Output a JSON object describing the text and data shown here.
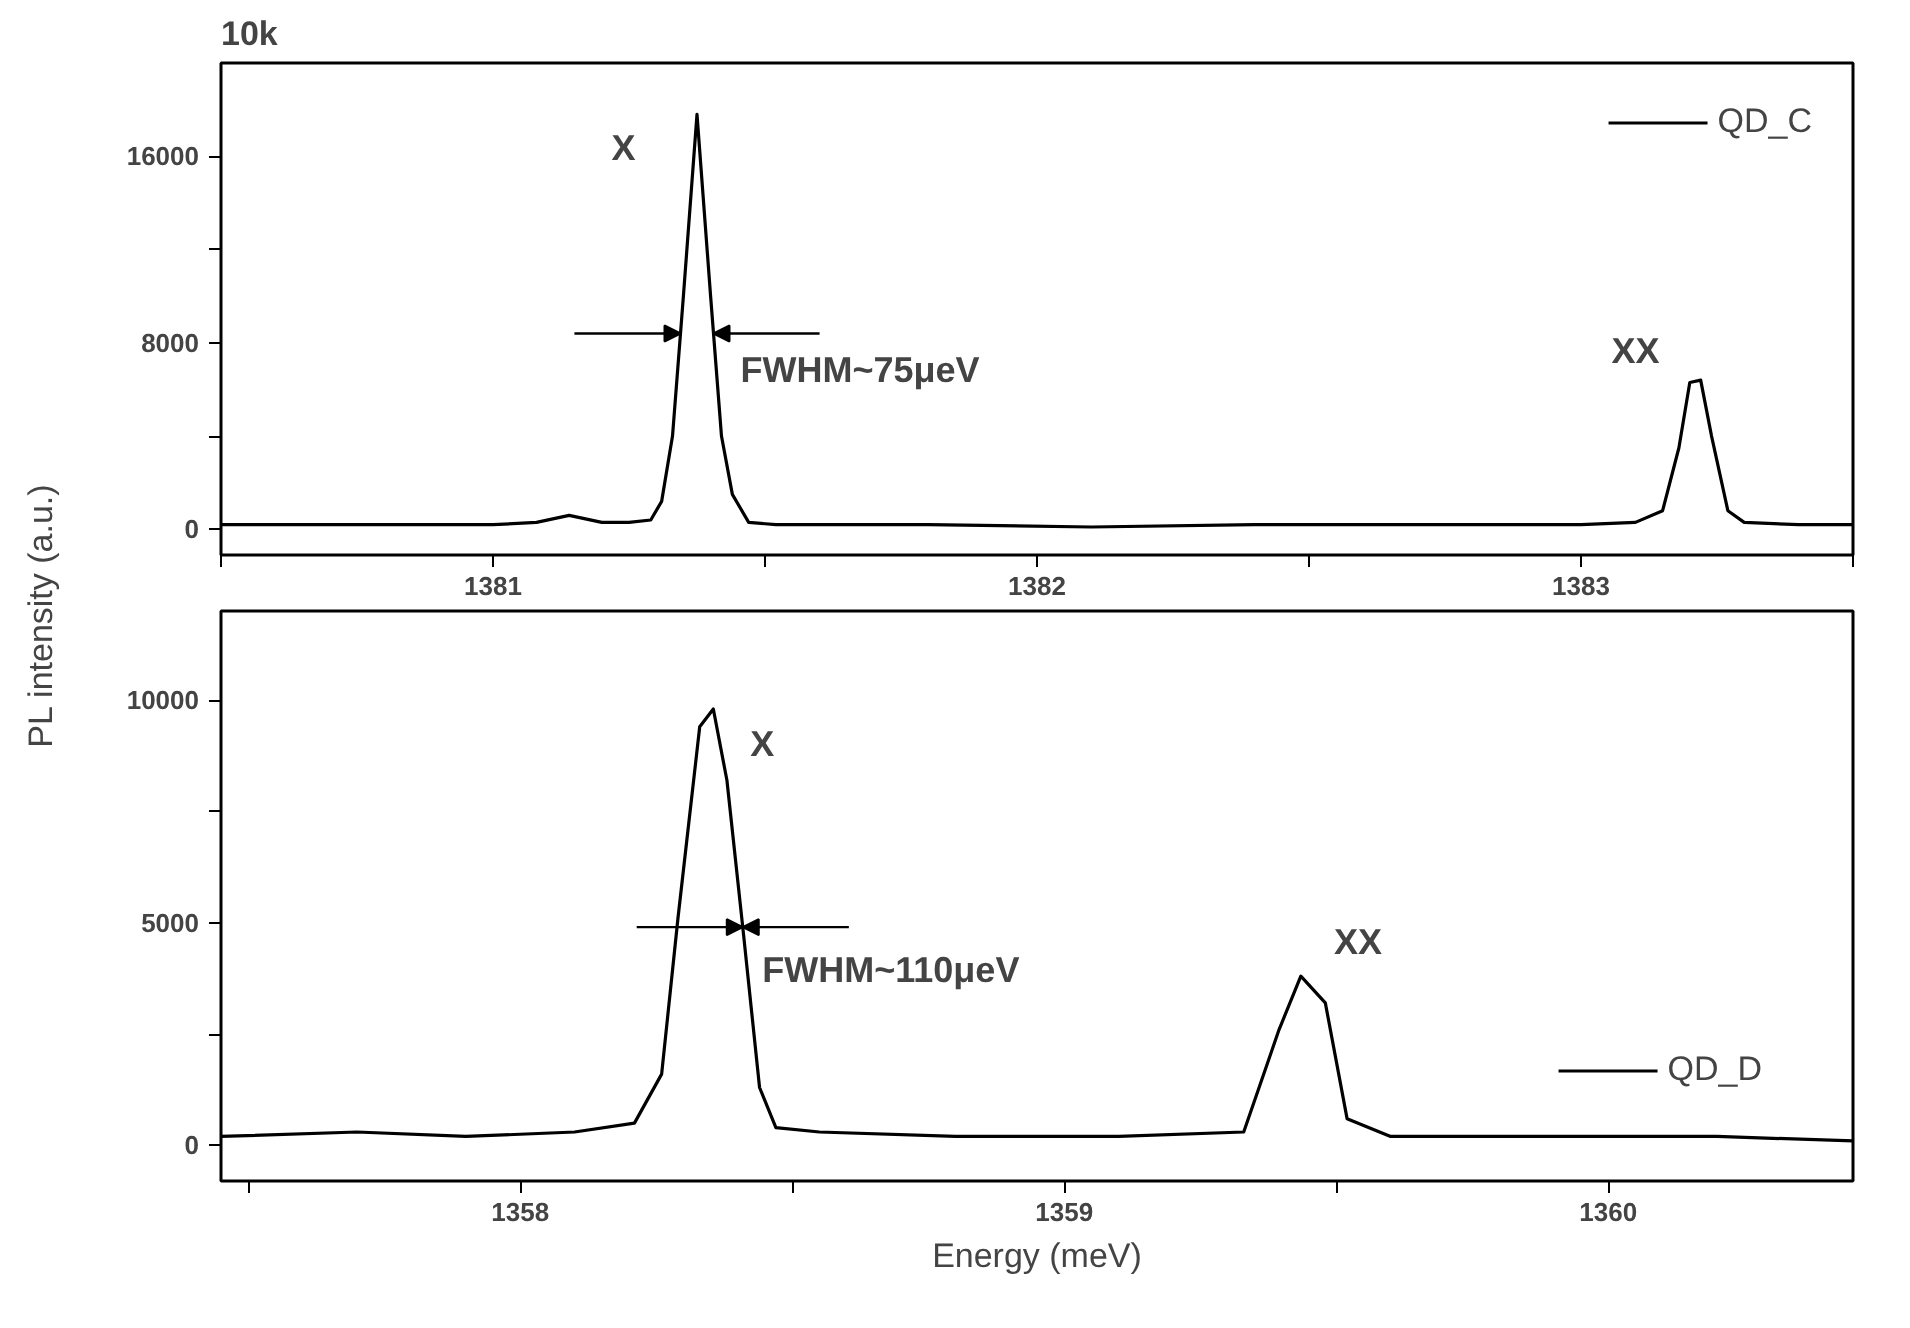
{
  "chart_data": [
    {
      "type": "line",
      "title": "10k",
      "ylabel": "PL intensity (a.u.)",
      "legend": "top right",
      "grid": false,
      "xlim": [
        1380.5,
        1383.5
      ],
      "ylim": [
        -1100,
        20000
      ],
      "xticks": [
        {
          "value": 1380.5,
          "label": null
        },
        1381,
        {
          "value": 1381.5,
          "label": null
        },
        1382,
        {
          "value": 1382.5,
          "label": null
        },
        1383,
        {
          "value": 1383.5,
          "label": null
        }
      ],
      "yticks": [
        0,
        {
          "value": 4000,
          "label": null
        },
        8000,
        {
          "value": 12000,
          "label": null
        },
        16000
      ],
      "annotations": [
        "X",
        {
          "text": "FWHM~75μeV",
          "x": 1381.41,
          "y": 8400
        },
        "XX"
      ],
      "series": [
        {
          "name": "QD_C",
          "color": "#000000",
          "x": [
            1380.5,
            1380.7,
            1380.9,
            1381.0,
            1381.08,
            1381.14,
            1381.2,
            1381.25,
            1381.29,
            1381.31,
            1381.33,
            1381.35,
            1381.375,
            1381.4,
            1381.42,
            1381.44,
            1381.47,
            1381.52,
            1381.8,
            1382.1,
            1382.4,
            1382.7,
            1383.0,
            1383.1,
            1383.15,
            1383.18,
            1383.2,
            1383.22,
            1383.24,
            1383.27,
            1383.3,
            1383.4,
            1383.5
          ],
          "values": [
            200,
            200,
            200,
            200,
            300,
            600,
            300,
            300,
            400,
            1200,
            4000,
            10000,
            17800,
            10000,
            4000,
            1500,
            300,
            200,
            200,
            100,
            200,
            200,
            200,
            300,
            800,
            3500,
            6300,
            6400,
            4000,
            800,
            300,
            200,
            200
          ]
        }
      ]
    },
    {
      "type": "line",
      "xlabel": "Energy (meV)",
      "legend": "bottom right",
      "grid": false,
      "xlim": [
        1357.45,
        1360.45
      ],
      "ylim": [
        -800,
        12000
      ],
      "xticks": [
        {
          "value": 1357.5,
          "label": null
        },
        1358,
        {
          "value": 1358.5,
          "label": null
        },
        1359,
        {
          "value": 1359.5,
          "label": null
        },
        1360
      ],
      "yticks": [
        0,
        {
          "value": 2500,
          "label": null
        },
        5000,
        {
          "value": 7500,
          "label": null
        },
        10000
      ],
      "annotations": [
        "X",
        {
          "text": "FWHM~110μeV",
          "x": 1358.4,
          "y": 4900
        },
        "XX"
      ],
      "series": [
        {
          "name": "QD_D",
          "color": "#000000",
          "x": [
            1357.45,
            1357.7,
            1357.9,
            1358.1,
            1358.21,
            1358.26,
            1358.29,
            1358.33,
            1358.355,
            1358.38,
            1358.41,
            1358.44,
            1358.47,
            1358.55,
            1358.8,
            1359.1,
            1359.33,
            1359.395,
            1359.435,
            1359.48,
            1359.52,
            1359.6,
            1359.9,
            1360.2,
            1360.45
          ],
          "values": [
            200,
            300,
            200,
            300,
            500,
            1600,
            5100,
            9400,
            9800,
            8200,
            4800,
            1300,
            400,
            300,
            200,
            200,
            300,
            2600,
            3800,
            3200,
            600,
            200,
            200,
            200,
            100
          ]
        }
      ]
    }
  ]
}
